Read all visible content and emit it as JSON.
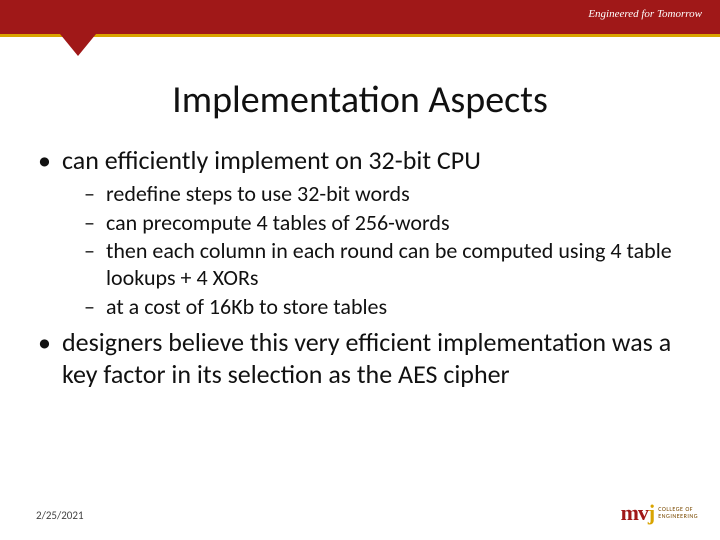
{
  "header": {
    "tagline": "Engineered for Tomorrow",
    "bar_color": "#a01818",
    "underline_color": "#d9a400"
  },
  "title": "Implementation Aspects",
  "bullets": [
    {
      "text": "can efficiently implement on 32-bit CPU",
      "sub": [
        "redefine steps to use 32-bit words",
        "can precompute 4 tables of 256-words",
        "then each column in each round can be computed using 4 table lookups + 4 XORs",
        "at a cost of 16Kb to store tables"
      ]
    },
    {
      "text": "designers believe this very efficient implementation was a key factor in its selection as the AES cipher",
      "sub": []
    }
  ],
  "footer": {
    "date": "2/25/2021"
  },
  "logo": {
    "name": "mvj",
    "sub1": "COLLEGE OF",
    "sub2": "ENGINEERING"
  }
}
